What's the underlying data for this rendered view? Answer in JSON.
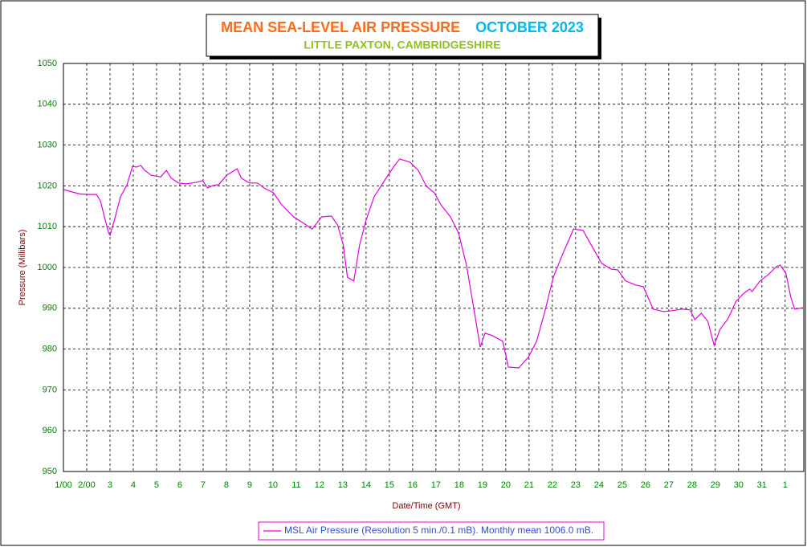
{
  "chart_data": {
    "type": "line",
    "title": "MEAN SEA-LEVEL AIR PRESSURE",
    "title_period": "OCTOBER 2023",
    "subtitle": "LITTLE PAXTON, CAMBRIDGESHIRE",
    "x_label": "Date/Time (GMT)",
    "y_label": "Pressure (Millibars)",
    "xlim": [
      0,
      31.8
    ],
    "ylim": [
      950,
      1050
    ],
    "yticks": [
      950,
      960,
      970,
      980,
      990,
      1000,
      1010,
      1020,
      1030,
      1040,
      1050
    ],
    "xticks": [
      {
        "value": 0,
        "label": "1/00"
      },
      {
        "value": 1,
        "label": "2/00"
      },
      {
        "value": 2,
        "label": "3"
      },
      {
        "value": 3,
        "label": "4"
      },
      {
        "value": 4,
        "label": "5"
      },
      {
        "value": 5,
        "label": "6"
      },
      {
        "value": 6,
        "label": "7"
      },
      {
        "value": 7,
        "label": "8"
      },
      {
        "value": 8,
        "label": "9"
      },
      {
        "value": 9,
        "label": "10"
      },
      {
        "value": 10,
        "label": "11"
      },
      {
        "value": 11,
        "label": "12"
      },
      {
        "value": 12,
        "label": "13"
      },
      {
        "value": 13,
        "label": "14"
      },
      {
        "value": 14,
        "label": "15"
      },
      {
        "value": 15,
        "label": "16"
      },
      {
        "value": 16,
        "label": "17"
      },
      {
        "value": 17,
        "label": "18"
      },
      {
        "value": 18,
        "label": "19"
      },
      {
        "value": 19,
        "label": "20"
      },
      {
        "value": 20,
        "label": "21"
      },
      {
        "value": 21,
        "label": "22"
      },
      {
        "value": 22,
        "label": "23"
      },
      {
        "value": 23,
        "label": "24"
      },
      {
        "value": 24,
        "label": "25"
      },
      {
        "value": 25,
        "label": "26"
      },
      {
        "value": 26,
        "label": "27"
      },
      {
        "value": 27,
        "label": "28"
      },
      {
        "value": 28,
        "label": "29"
      },
      {
        "value": 29,
        "label": "30"
      },
      {
        "value": 30,
        "label": "31"
      },
      {
        "value": 31,
        "label": "1"
      }
    ],
    "grid": true,
    "legend": "bottom",
    "x": [
      0,
      0.38,
      0.73,
      1.07,
      1.42,
      1.59,
      1.76,
      1.94,
      2.0,
      2.18,
      2.45,
      2.73,
      2.97,
      3.14,
      3.32,
      3.49,
      3.77,
      4.18,
      4.42,
      4.63,
      4.94,
      5.29,
      5.74,
      5.98,
      6.19,
      6.43,
      6.67,
      7.01,
      7.46,
      7.64,
      7.98,
      8.33,
      8.67,
      9.02,
      9.37,
      9.88,
      10.33,
      10.68,
      11.09,
      11.51,
      11.78,
      12.02,
      12.2,
      12.47,
      12.72,
      12.99,
      13.34,
      13.86,
      14.2,
      14.44,
      14.89,
      15.24,
      15.59,
      15.93,
      16.21,
      16.62,
      16.97,
      17.31,
      17.66,
      17.9,
      18.11,
      18.42,
      18.87,
      19.11,
      19.56,
      19.97,
      20.32,
      20.66,
      21.04,
      21.46,
      21.91,
      22.32,
      22.67,
      23.12,
      23.53,
      23.81,
      24.15,
      24.57,
      24.91,
      25.33,
      25.78,
      26.12,
      26.57,
      26.92,
      27.12,
      27.4,
      27.68,
      27.95,
      28.2,
      28.54,
      28.89,
      29.23,
      29.48,
      29.58,
      29.92,
      30.27,
      30.62,
      30.79,
      31.03,
      31.24,
      31.41,
      31.82
    ],
    "series": [
      {
        "name": "MSL Air Pressure (Resolution 5 min./0.1 mB). Monthly mean 1006.0 mB.",
        "color": "#e000e0",
        "values": [
          1019.1,
          1018.5,
          1018,
          1017.9,
          1017.9,
          1016.3,
          1012.4,
          1008.5,
          1007.9,
          1011.4,
          1017.3,
          1020.3,
          1024.8,
          1024.6,
          1025,
          1023.8,
          1022.6,
          1022.2,
          1023.8,
          1021.9,
          1020.7,
          1020.5,
          1020.9,
          1021.3,
          1019.5,
          1020.1,
          1020.3,
          1022.6,
          1024.2,
          1021.9,
          1020.7,
          1020.7,
          1019.3,
          1018.3,
          1015.4,
          1012.4,
          1010.8,
          1009.4,
          1012.4,
          1012.6,
          1010.4,
          1005.5,
          997.6,
          996.7,
          1005.5,
          1011.4,
          1017.3,
          1021.9,
          1024.8,
          1026.6,
          1025.8,
          1023.8,
          1019.9,
          1018.3,
          1015.4,
          1012.4,
          1008.5,
          1000.6,
          988.8,
          980.5,
          983.9,
          983.3,
          981.9,
          975.6,
          975.4,
          978,
          981.9,
          988.8,
          997.6,
          1003.5,
          1009.4,
          1009.1,
          1005.5,
          1001,
          999.6,
          999.4,
          996.7,
          995.7,
          995.3,
          989.8,
          989.2,
          989.4,
          989.8,
          989.6,
          987.2,
          988.8,
          986.8,
          980.9,
          984.8,
          987.4,
          991.7,
          993.7,
          994.7,
          994.1,
          996.7,
          998.2,
          1000.2,
          1000.6,
          998.6,
          992.7,
          989.8,
          990.2
        ]
      }
    ]
  }
}
